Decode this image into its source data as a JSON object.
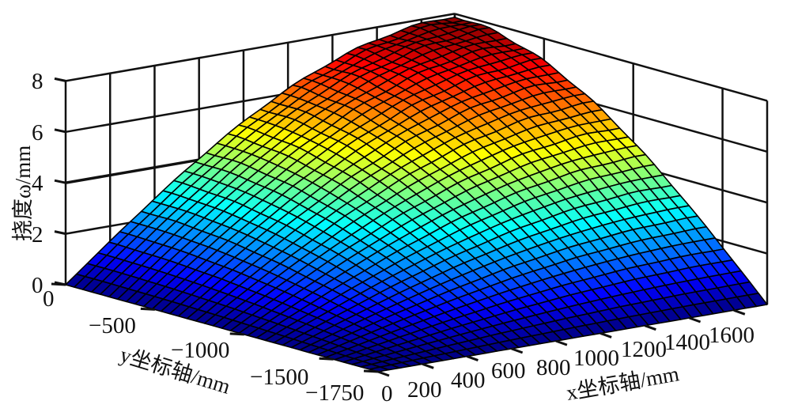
{
  "chart_data": {
    "type": "surface",
    "title": "",
    "colormap": "jet",
    "xlabel": "x坐标轴/mm",
    "ylabel": "y坐标轴/mm",
    "zlabel": "挠度ω/mm",
    "xlim": [
      0,
      1750
    ],
    "ylim": [
      -1750,
      0
    ],
    "zlim": [
      0,
      8
    ],
    "x_ticks": [
      0,
      200,
      400,
      600,
      800,
      1000,
      1200,
      1400,
      1600
    ],
    "y_ticks": [
      0,
      -500,
      -1000,
      -1500,
      -1750
    ],
    "z_ticks": [
      0,
      2,
      4,
      6,
      8
    ],
    "grid": true,
    "surface": {
      "description": "Deflection of a plate: zero along the front edges, rising to a peak near the back corner (x≈1750, y≈0)",
      "grid_size": [
        36,
        36
      ],
      "peak_value": 7.9,
      "peak_location": {
        "x": 1750,
        "y": 0
      },
      "z_at_corners": {
        "x0_y0": 0.0,
        "x1750_y0": 7.9,
        "x0_y-1750": 0.0,
        "x1750_y-1750": 0.0
      },
      "shape": "z = 7.9 * sin(pi/2 * x/1750) * sin(pi/2 * (y+1750)/1750) (approx.)"
    }
  },
  "labels": {
    "z_ticks": [
      "0",
      "2",
      "4",
      "6",
      "8"
    ],
    "y_ticks": [
      "0",
      "−500",
      "−1000",
      "−1500",
      "−1750"
    ],
    "x_ticks": [
      "0",
      "200",
      "400",
      "600",
      "800",
      "1000",
      "1200",
      "1400",
      "1600"
    ],
    "z_axis_label": "挠度ω/mm",
    "y_axis_label": "y坐标轴/mm",
    "x_axis_label": "x坐标轴/mm"
  },
  "colors": {
    "grid": "#111111",
    "edge": "#000000",
    "background": "#ffffff"
  }
}
